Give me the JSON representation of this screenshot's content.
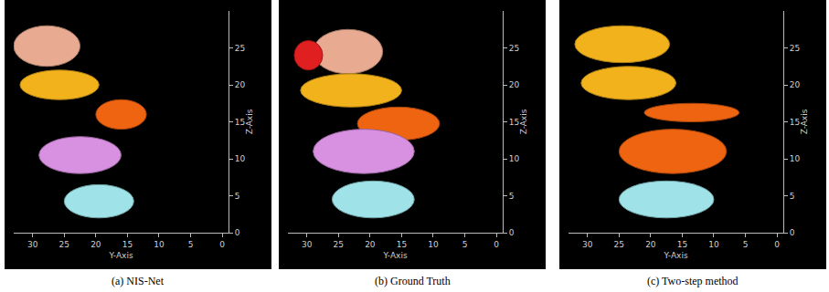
{
  "chart_data": [
    {
      "type": "blob",
      "title": "(a) NIS-Net",
      "x_label": "Y-Axis",
      "y_label": "Z-Axis",
      "xlim": [
        33,
        -1
      ],
      "xticks": [
        30,
        25,
        20,
        15,
        10,
        5,
        0
      ],
      "ylim": [
        0,
        30
      ],
      "yticks": [
        0,
        5,
        10,
        15,
        20,
        25
      ],
      "series": [
        {
          "color": "#e8ab92",
          "x": [
            33,
            22.5
          ],
          "values": [
            22.5,
            28
          ]
        },
        {
          "color": "#f2b21c",
          "x": [
            32,
            19.5
          ],
          "values": [
            18,
            22
          ]
        },
        {
          "color": "#ee6410",
          "x": [
            20,
            12
          ],
          "values": [
            14,
            18
          ]
        },
        {
          "color": "#d890e0",
          "x": [
            29,
            16
          ],
          "values": [
            8,
            13
          ]
        },
        {
          "color": "#9fe3e8",
          "x": [
            25,
            14
          ],
          "values": [
            2,
            6.5
          ]
        }
      ]
    },
    {
      "type": "blob",
      "title": "(b) Ground Truth",
      "x_label": "Y-Axis",
      "y_label": "Z-Axis",
      "xlim": [
        33,
        -1
      ],
      "xticks": [
        30,
        25,
        20,
        15,
        10,
        5,
        0
      ],
      "ylim": [
        0,
        30
      ],
      "yticks": [
        0,
        5,
        10,
        15,
        20,
        25
      ],
      "series": [
        {
          "color": "#e8ab92",
          "x": [
            29,
            18
          ],
          "values": [
            21.5,
            27.5
          ]
        },
        {
          "color": "#e02020",
          "x": [
            32,
            27.5
          ],
          "values": [
            22,
            26
          ]
        },
        {
          "color": "#f2b21c",
          "x": [
            31,
            15
          ],
          "values": [
            17,
            21.5
          ]
        },
        {
          "color": "#ee6410",
          "x": [
            22,
            9
          ],
          "values": [
            12.5,
            17
          ]
        },
        {
          "color": "#d890e0",
          "x": [
            29,
            13
          ],
          "values": [
            8,
            14
          ]
        },
        {
          "color": "#9fe3e8",
          "x": [
            26,
            13
          ],
          "values": [
            2,
            7
          ]
        }
      ]
    },
    {
      "type": "blob",
      "title": "(c) Two-step method",
      "x_label": "Y-Axis",
      "y_label": "Z-Axis",
      "xlim": [
        33,
        -1
      ],
      "xticks": [
        30,
        25,
        20,
        15,
        10,
        5,
        0
      ],
      "ylim": [
        0,
        30
      ],
      "yticks": [
        0,
        5,
        10,
        15,
        20,
        25
      ],
      "series": [
        {
          "color": "#f2b21c",
          "x": [
            32,
            17
          ],
          "values": [
            23,
            28
          ]
        },
        {
          "color": "#f2b21c",
          "x": [
            31,
            16
          ],
          "values": [
            18,
            22.5
          ]
        },
        {
          "color": "#ee6410",
          "x": [
            21,
            6
          ],
          "values": [
            15,
            17.5
          ]
        },
        {
          "color": "#ee6410",
          "x": [
            25,
            8
          ],
          "values": [
            8,
            14
          ]
        },
        {
          "color": "#9fe3e8",
          "x": [
            25,
            10
          ],
          "values": [
            2,
            7
          ]
        }
      ]
    }
  ]
}
